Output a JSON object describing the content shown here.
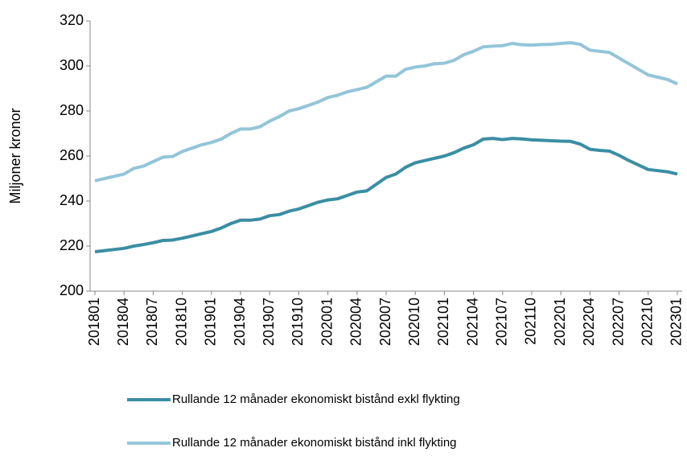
{
  "chart_data": {
    "type": "line",
    "y_label": "Miljoner kronor",
    "categories": [
      "201801",
      null,
      null,
      "201804",
      null,
      null,
      "201807",
      null,
      null,
      "201810",
      null,
      null,
      "201901",
      null,
      null,
      "201904",
      null,
      null,
      "201907",
      null,
      null,
      "201910",
      null,
      null,
      "202001",
      null,
      null,
      "202004",
      null,
      null,
      "202007",
      null,
      null,
      "202010",
      null,
      null,
      "202101",
      null,
      null,
      "202104",
      null,
      null,
      "202107",
      null,
      null,
      "202110",
      null,
      null,
      "202201",
      null,
      null,
      "202204",
      null,
      null,
      "202207",
      null,
      null,
      "202210",
      null,
      null,
      "202301"
    ],
    "series": [
      {
        "name": "Rullande 12 månader ekonomiskt bistånd exkl flykting",
        "color": "#3a8ea4",
        "values": [
          217.5,
          218,
          218.5,
          219,
          220,
          220.7,
          221.5,
          222.5,
          222.7,
          223.5,
          224.5,
          225.5,
          226.5,
          228,
          230,
          231.5,
          231.5,
          232,
          233.5,
          234,
          235.5,
          236.5,
          238,
          239.5,
          240.5,
          241,
          242.5,
          244,
          244.5,
          247.5,
          250.5,
          252,
          255,
          257,
          258,
          259,
          260,
          261.5,
          263.5,
          265,
          267.5,
          267.8,
          267.3,
          267.8,
          267.6,
          267.2,
          267,
          266.8,
          266.6,
          266.5,
          265.3,
          263,
          262.5,
          262.2,
          260.3,
          258,
          256,
          254,
          253.5,
          253,
          252
        ]
      },
      {
        "name": "Rullande 12 månader ekonomiskt bistånd inkl flykting",
        "color": "#93c5d9",
        "values": [
          249,
          250,
          251,
          252,
          254.5,
          255.5,
          257.5,
          259.5,
          259.8,
          262,
          263.5,
          265,
          266,
          267.5,
          270,
          272,
          272,
          273,
          275.5,
          277.5,
          280,
          281,
          282.5,
          284,
          286,
          287,
          288.5,
          289.5,
          290.5,
          293,
          295.5,
          295.5,
          298.5,
          299.5,
          300,
          301,
          301.2,
          302.5,
          305,
          306.5,
          308.5,
          308.8,
          309,
          310,
          309.4,
          309.3,
          309.5,
          309.6,
          310,
          310.3,
          309.6,
          307,
          306.5,
          306,
          303.5,
          301,
          298.5,
          296,
          295,
          294,
          292
        ]
      }
    ],
    "ylim": [
      200,
      320
    ],
    "yticks": [
      200,
      220,
      240,
      260,
      280,
      300,
      320
    ],
    "grid": false
  }
}
